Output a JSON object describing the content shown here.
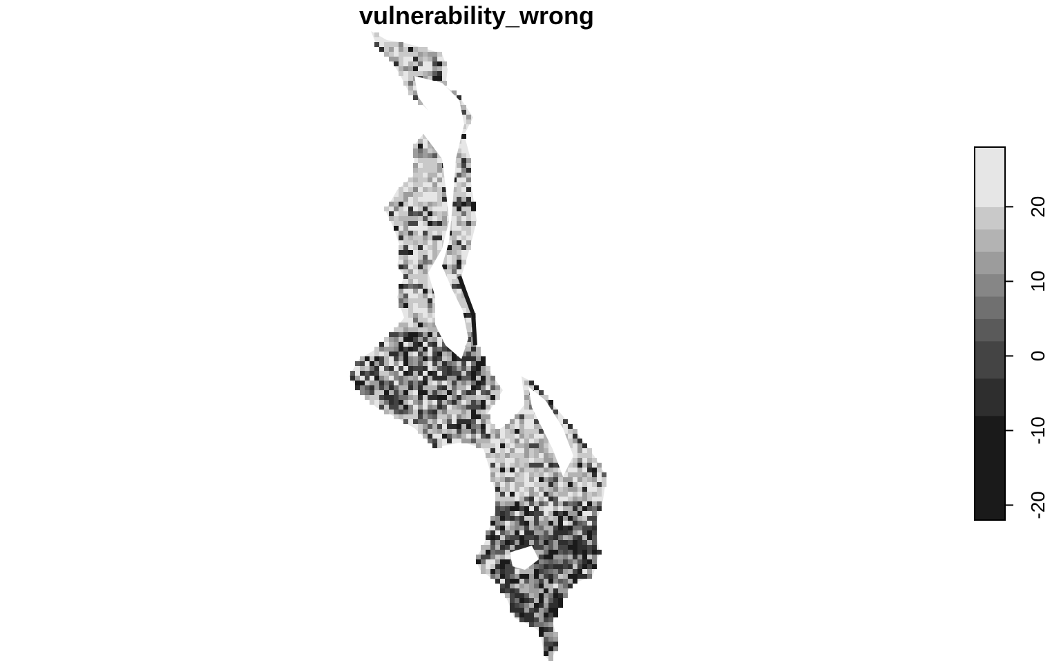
{
  "map": {
    "title": "vulnerability_wrong",
    "layer": "vulnerability_wrong",
    "palette": "grey scale, dark = low, light = high",
    "background": "#ffffff"
  },
  "legend": {
    "type": "continuous colorbar",
    "range": [
      -22,
      28
    ],
    "ticks": [
      {
        "value": -20,
        "label": "-20"
      },
      {
        "value": -10,
        "label": "-10"
      },
      {
        "value": 0,
        "label": "0"
      },
      {
        "value": 10,
        "label": "10"
      },
      {
        "value": 20,
        "label": "20"
      }
    ],
    "bands": [
      {
        "from": -22,
        "to": -8,
        "color": "#1a1a1a"
      },
      {
        "from": -8,
        "to": -3,
        "color": "#2e2e2e"
      },
      {
        "from": -3,
        "to": 2,
        "color": "#444444"
      },
      {
        "from": 2,
        "to": 5,
        "color": "#5a5a5a"
      },
      {
        "from": 5,
        "to": 8,
        "color": "#707070"
      },
      {
        "from": 8,
        "to": 11,
        "color": "#868686"
      },
      {
        "from": 11,
        "to": 14,
        "color": "#9c9c9c"
      },
      {
        "from": 14,
        "to": 17,
        "color": "#b3b3b3"
      },
      {
        "from": 17,
        "to": 20,
        "color": "#c9c9c9"
      },
      {
        "from": 20,
        "to": 28,
        "color": "#e6e6e6"
      }
    ]
  }
}
